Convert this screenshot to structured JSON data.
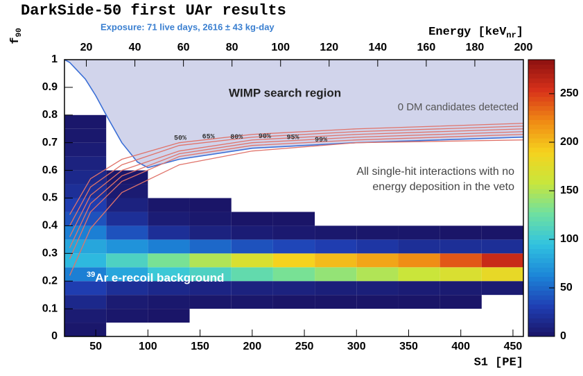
{
  "chart_data": {
    "type": "heatmap",
    "title": "DarkSide-50 first UAr results",
    "subtitle": "Exposure: 71 live days, 2616 ± 43 kg-day",
    "xlabel": "S1 [PE]",
    "ylabel": [
      "f",
      "90"
    ],
    "x2label": [
      "Energy [keV",
      "nr",
      "]"
    ],
    "annotations": {
      "region": "WIMP search region",
      "candidates": "0 DM candidates detected",
      "selection": [
        "All single-hit interactions with no",
        "energy deposition in the veto"
      ],
      "background": [
        "39",
        "Ar e-recoil background"
      ]
    },
    "xlim": [
      20,
      460
    ],
    "xticks": [
      50,
      100,
      150,
      200,
      250,
      300,
      350,
      400,
      450
    ],
    "ylim": [
      0,
      1
    ],
    "yticks": [
      0,
      0.1,
      0.2,
      0.3,
      0.4,
      0.5,
      0.6,
      0.7,
      0.8,
      0.9,
      1
    ],
    "x2lim": [
      11,
      200
    ],
    "x2ticks": [
      20,
      40,
      60,
      80,
      100,
      120,
      140,
      160,
      180,
      200
    ],
    "zlim": [
      0,
      285
    ],
    "zticks": [
      0,
      50,
      100,
      150,
      200,
      250
    ],
    "colormap": [
      "#1a1466",
      "#1f3fb4",
      "#1c86d8",
      "#31c3e0",
      "#6fe0a0",
      "#c8e63c",
      "#f5d21e",
      "#f08a14",
      "#d8321a",
      "#8c1010"
    ],
    "xbins": [
      20,
      60,
      100,
      140,
      180,
      220,
      260,
      300,
      340,
      380,
      420,
      460
    ],
    "ybins": [
      0,
      0.05,
      0.1,
      0.15,
      0.2,
      0.25,
      0.3,
      0.35,
      0.4,
      0.45,
      0.5,
      0.55,
      0.6,
      0.65,
      0.7,
      0.75,
      0.8,
      0.85,
      0.9,
      0.95,
      1
    ],
    "z": [
      [
        2,
        0,
        0,
        0,
        0,
        0,
        0,
        0,
        0,
        0,
        0
      ],
      [
        5,
        2,
        1,
        0,
        0,
        0,
        0,
        0,
        0,
        0,
        0
      ],
      [
        15,
        5,
        3,
        2,
        2,
        1,
        1,
        1,
        1,
        1,
        0
      ],
      [
        30,
        20,
        15,
        12,
        10,
        10,
        8,
        8,
        6,
        5,
        5
      ],
      [
        60,
        80,
        100,
        110,
        120,
        130,
        140,
        150,
        160,
        170,
        180
      ],
      [
        90,
        110,
        130,
        150,
        170,
        190,
        200,
        210,
        220,
        240,
        260
      ],
      [
        80,
        70,
        60,
        50,
        40,
        35,
        30,
        25,
        20,
        20,
        20
      ],
      [
        60,
        40,
        20,
        10,
        6,
        4,
        3,
        2,
        2,
        1,
        1
      ],
      [
        40,
        20,
        6,
        3,
        1,
        1,
        0,
        0,
        0,
        0,
        0
      ],
      [
        30,
        10,
        2,
        1,
        0,
        0,
        0,
        0,
        0,
        0,
        0
      ],
      [
        20,
        5,
        0,
        0,
        0,
        0,
        0,
        0,
        0,
        0,
        0
      ],
      [
        15,
        2,
        0,
        0,
        0,
        0,
        0,
        0,
        0,
        0,
        0
      ],
      [
        10,
        0,
        0,
        0,
        0,
        0,
        0,
        0,
        0,
        0,
        0
      ],
      [
        6,
        0,
        0,
        0,
        0,
        0,
        0,
        0,
        0,
        0,
        0
      ],
      [
        3,
        0,
        0,
        0,
        0,
        0,
        0,
        0,
        0,
        0,
        0
      ],
      [
        2,
        0,
        0,
        0,
        0,
        0,
        0,
        0,
        0,
        0,
        0
      ],
      [
        0,
        0,
        0,
        0,
        0,
        0,
        0,
        0,
        0,
        0,
        0
      ],
      [
        0,
        0,
        0,
        0,
        0,
        0,
        0,
        0,
        0,
        0,
        0
      ],
      [
        0,
        0,
        0,
        0,
        0,
        0,
        0,
        0,
        0,
        0,
        0
      ],
      [
        0,
        0,
        0,
        0,
        0,
        0,
        0,
        0,
        0,
        0,
        0
      ]
    ],
    "boundary": {
      "color": "#3b6fd6",
      "fill": "#c9cce8",
      "x": [
        20,
        25,
        30,
        40,
        50,
        60,
        75,
        90,
        100,
        130,
        200,
        300,
        460
      ],
      "values": [
        1.0,
        0.99,
        0.97,
        0.93,
        0.87,
        0.8,
        0.7,
        0.63,
        0.61,
        0.64,
        0.68,
        0.7,
        0.72
      ]
    },
    "contours": [
      {
        "name": "50%",
        "color": "#e0736a",
        "x": [
          25,
          45,
          75,
          130,
          200,
          300,
          460
        ],
        "values": [
          0.44,
          0.57,
          0.64,
          0.7,
          0.73,
          0.75,
          0.77
        ]
      },
      {
        "name": "65%",
        "color": "#e0736a",
        "x": [
          25,
          45,
          75,
          130,
          200,
          300,
          460
        ],
        "values": [
          0.4,
          0.54,
          0.62,
          0.69,
          0.72,
          0.74,
          0.76
        ]
      },
      {
        "name": "80%",
        "color": "#e0736a",
        "x": [
          25,
          45,
          75,
          130,
          200,
          300,
          460
        ],
        "values": [
          0.36,
          0.51,
          0.6,
          0.67,
          0.71,
          0.73,
          0.75
        ]
      },
      {
        "name": "90%",
        "color": "#e0736a",
        "x": [
          25,
          45,
          75,
          130,
          200,
          300,
          460
        ],
        "values": [
          0.32,
          0.48,
          0.58,
          0.66,
          0.7,
          0.72,
          0.74
        ]
      },
      {
        "name": "95%",
        "color": "#e0736a",
        "x": [
          25,
          45,
          75,
          130,
          200,
          300,
          460
        ],
        "values": [
          0.28,
          0.45,
          0.56,
          0.65,
          0.69,
          0.71,
          0.73
        ]
      },
      {
        "name": "99%",
        "color": "#e0736a",
        "x": [
          25,
          45,
          75,
          130,
          200,
          300,
          460
        ],
        "values": [
          0.22,
          0.39,
          0.52,
          0.62,
          0.67,
          0.7,
          0.71
        ]
      }
    ]
  }
}
